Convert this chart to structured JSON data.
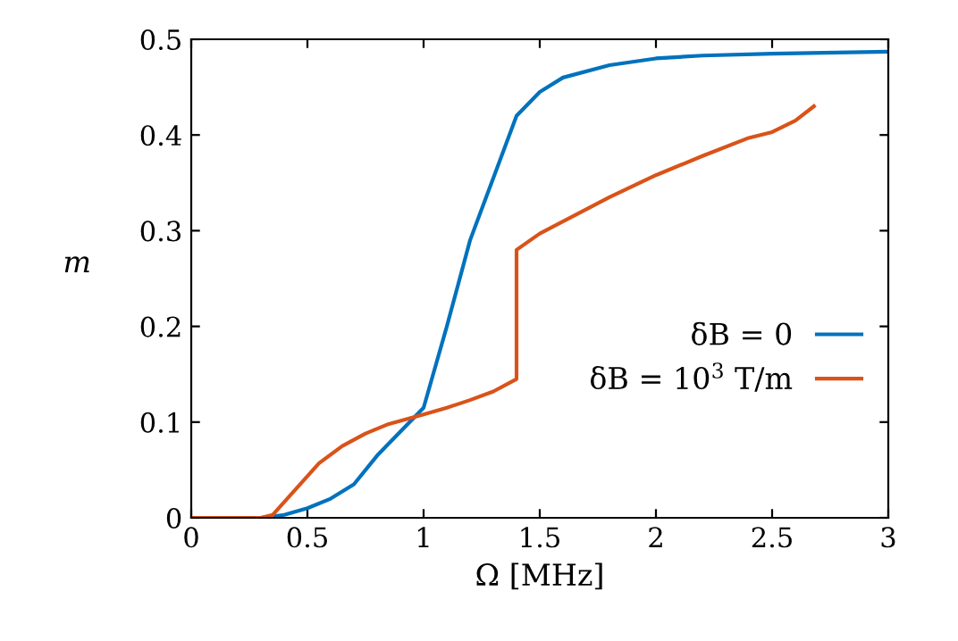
{
  "chart_data": {
    "type": "line",
    "xlabel": "Ω [MHz]",
    "ylabel": "m",
    "xlim": [
      0,
      3
    ],
    "ylim": [
      0,
      0.5
    ],
    "xticks": [
      0,
      0.5,
      1,
      1.5,
      2,
      2.5,
      3
    ],
    "yticks": [
      0,
      0.1,
      0.2,
      0.3,
      0.4,
      0.5
    ],
    "grid": false,
    "legend": "bottom right",
    "line_style": "solid",
    "marker": "none",
    "series": [
      {
        "name": "δB = 0",
        "color": "#0072bd",
        "x": [
          0,
          0.3,
          0.4,
          0.5,
          0.6,
          0.7,
          0.8,
          0.9,
          1.0,
          1.1,
          1.2,
          1.3,
          1.4,
          1.5,
          1.6,
          1.8,
          2.0,
          2.2,
          2.5,
          3.0
        ],
        "values": [
          0,
          0,
          0.003,
          0.01,
          0.02,
          0.035,
          0.065,
          0.09,
          0.115,
          0.2,
          0.29,
          0.355,
          0.42,
          0.445,
          0.46,
          0.473,
          0.48,
          0.483,
          0.485,
          0.487
        ]
      },
      {
        "name": "δB = 10$^{3}$ T/m",
        "color": "#d95319",
        "x": [
          0,
          0.3,
          0.35,
          0.45,
          0.55,
          0.65,
          0.75,
          0.85,
          1.0,
          1.1,
          1.2,
          1.3,
          1.4,
          1.4,
          1.5,
          1.8,
          2.0,
          2.2,
          2.4,
          2.5,
          2.6,
          2.68
        ],
        "values": [
          0,
          0,
          0.003,
          0.03,
          0.057,
          0.075,
          0.088,
          0.098,
          0.108,
          0.115,
          0.123,
          0.132,
          0.145,
          0.28,
          0.297,
          0.335,
          0.358,
          0.378,
          0.397,
          0.403,
          0.415,
          0.43
        ]
      }
    ]
  }
}
